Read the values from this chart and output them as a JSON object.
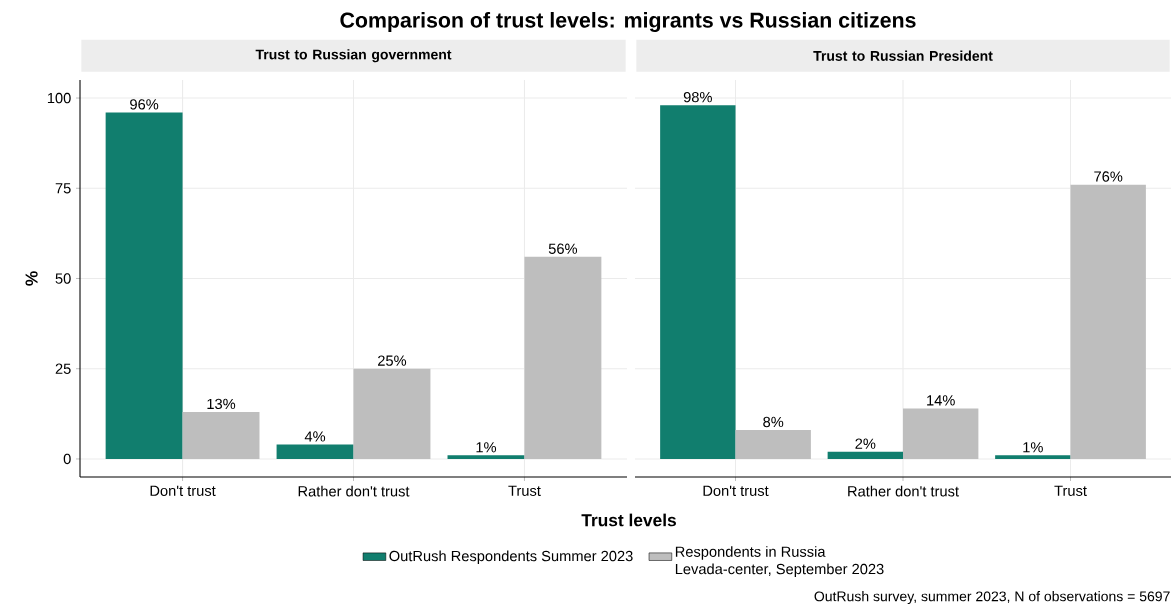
{
  "chart_data": [
    {
      "type": "bar",
      "title": "Comparison of trust levels: migrants vs Russian citizens",
      "subtitle": "Trust to Russian government",
      "xlabel": "Trust levels",
      "ylabel": "%",
      "categories": [
        "Don't trust",
        "Rather don't trust",
        "Trust"
      ],
      "series": [
        {
          "name": "OutRush Respondents Summer 2023",
          "color": "#117e6e",
          "values": [
            96,
            4,
            1
          ],
          "value_labels": [
            "96%",
            "4%",
            "1%"
          ]
        },
        {
          "name": "Respondents in Russia Levada-center, September 2023",
          "color": "#bebebe",
          "values": [
            13,
            25,
            56
          ],
          "value_labels": [
            "13%",
            "25%",
            "56%"
          ]
        }
      ],
      "ylim": [
        -5,
        105
      ],
      "yticks": [
        0,
        25,
        50,
        75,
        100
      ],
      "grid": true,
      "legend": "bottom"
    },
    {
      "type": "bar",
      "subtitle": "Trust to Russian President",
      "categories": [
        "Don't trust",
        "Rather don't trust",
        "Trust"
      ],
      "series": [
        {
          "color": "#117e6e",
          "values": [
            98,
            2,
            1
          ],
          "value_labels": [
            "98%",
            "2%",
            "1%"
          ]
        },
        {
          "color": "#bebebe",
          "values": [
            8,
            14,
            76
          ],
          "value_labels": [
            "8%",
            "14%",
            "76%"
          ]
        }
      ],
      "ylim": [
        -5,
        105
      ],
      "yticks": [
        0,
        25,
        50,
        75,
        100
      ],
      "grid": true,
      "tick_labels": "x",
      "annotations": [
        "OutRush survey, summer 2023, N of observations =  5697"
      ]
    }
  ]
}
